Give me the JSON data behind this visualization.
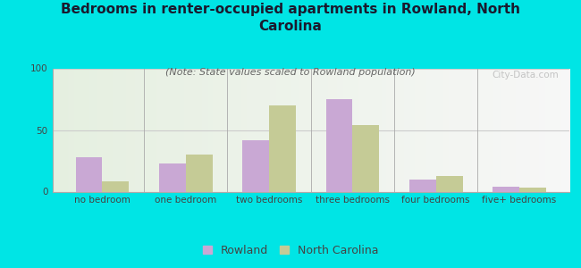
{
  "title": "Bedrooms in renter-occupied apartments in Rowland, North\nCarolina",
  "subtitle": "(Note: State values scaled to Rowland population)",
  "categories": [
    "no bedroom",
    "one bedroom",
    "two bedrooms",
    "three bedrooms",
    "four bedrooms",
    "five+ bedrooms"
  ],
  "rowland_values": [
    28,
    23,
    42,
    75,
    10,
    4
  ],
  "nc_values": [
    8,
    30,
    70,
    54,
    13,
    3
  ],
  "rowland_color": "#c9a8d4",
  "nc_color": "#c5cb96",
  "background_outer": "#00e5e5",
  "ylim": [
    0,
    100
  ],
  "yticks": [
    0,
    50,
    100
  ],
  "title_fontsize": 11,
  "subtitle_fontsize": 8,
  "tick_fontsize": 7.5,
  "legend_fontsize": 9,
  "watermark": "City-Data.com"
}
